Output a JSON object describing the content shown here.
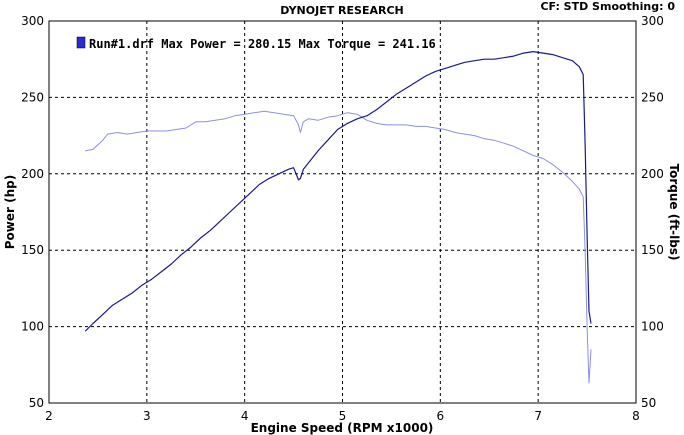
{
  "chart_data": {
    "type": "line",
    "title": "DYNOJET RESEARCH",
    "header_right": "CF: STD  Smoothing: 0",
    "legend_text": "Run#1.drf Max Power = 280.15     Max Torque = 241.16",
    "xlabel": "Engine Speed (RPM x1000)",
    "ylabel_left": "Power (hp)",
    "ylabel_right": "Torque (ft-lbs)",
    "xlim": [
      2,
      8
    ],
    "ylim": [
      50,
      300
    ],
    "x_ticks": [
      "2",
      "3",
      "4",
      "5",
      "6",
      "7",
      "8"
    ],
    "y_ticks": [
      "50",
      "100",
      "150",
      "200",
      "250",
      "300"
    ],
    "grid": true,
    "colors": {
      "power": "#1a1a8c",
      "torque": "#8b8fe6",
      "legend_swatch": "#2b2bd1",
      "grid": "#000000",
      "frame": "#000000"
    },
    "series": [
      {
        "key": "power",
        "x": [
          2.37,
          2.45,
          2.55,
          2.65,
          2.75,
          2.85,
          2.95,
          3.05,
          3.15,
          3.25,
          3.35,
          3.45,
          3.55,
          3.65,
          3.75,
          3.85,
          3.95,
          4.05,
          4.15,
          4.25,
          4.35,
          4.45,
          4.5,
          4.55,
          4.57,
          4.6,
          4.65,
          4.75,
          4.85,
          4.95,
          5.05,
          5.15,
          5.25,
          5.35,
          5.45,
          5.55,
          5.65,
          5.75,
          5.85,
          5.95,
          6.05,
          6.15,
          6.25,
          6.35,
          6.45,
          6.55,
          6.65,
          6.75,
          6.85,
          6.95,
          7.05,
          7.15,
          7.25,
          7.35,
          7.42,
          7.46,
          7.48,
          7.5,
          7.52,
          7.54
        ],
        "values": [
          97,
          102,
          108,
          114,
          118,
          122,
          127,
          131,
          136,
          141,
          147,
          152,
          158,
          163,
          169,
          175,
          181,
          187,
          193,
          197,
          200,
          203,
          204,
          196,
          197,
          203,
          207,
          215,
          222,
          229,
          233,
          236,
          238,
          242,
          247,
          252,
          256,
          260,
          264,
          267,
          269,
          271,
          273,
          274,
          275,
          275,
          276,
          277,
          279,
          280,
          279,
          278,
          276,
          274,
          270,
          265,
          220,
          160,
          110,
          102
        ]
      },
      {
        "key": "torque",
        "x": [
          2.37,
          2.45,
          2.55,
          2.6,
          2.7,
          2.8,
          2.9,
          3.0,
          3.1,
          3.2,
          3.3,
          3.4,
          3.5,
          3.6,
          3.7,
          3.8,
          3.9,
          4.0,
          4.1,
          4.2,
          4.3,
          4.4,
          4.5,
          4.55,
          4.57,
          4.6,
          4.65,
          4.75,
          4.85,
          4.95,
          5.05,
          5.15,
          5.25,
          5.35,
          5.45,
          5.55,
          5.65,
          5.75,
          5.85,
          5.95,
          6.05,
          6.15,
          6.25,
          6.35,
          6.45,
          6.55,
          6.65,
          6.75,
          6.85,
          6.95,
          7.05,
          7.15,
          7.25,
          7.35,
          7.42,
          7.46,
          7.48,
          7.5,
          7.52,
          7.54
        ],
        "values": [
          215,
          216,
          222,
          226,
          227,
          226,
          227,
          228,
          228,
          228,
          229,
          230,
          234,
          234,
          235,
          236,
          238,
          239,
          240,
          241,
          240,
          239,
          238,
          232,
          227,
          234,
          236,
          235,
          237,
          238,
          240,
          239,
          235,
          233,
          232,
          232,
          232,
          231,
          231,
          230,
          229,
          227,
          226,
          225,
          223,
          222,
          220,
          218,
          215,
          212,
          210,
          206,
          201,
          195,
          190,
          185,
          150,
          100,
          63,
          85
        ]
      }
    ]
  }
}
